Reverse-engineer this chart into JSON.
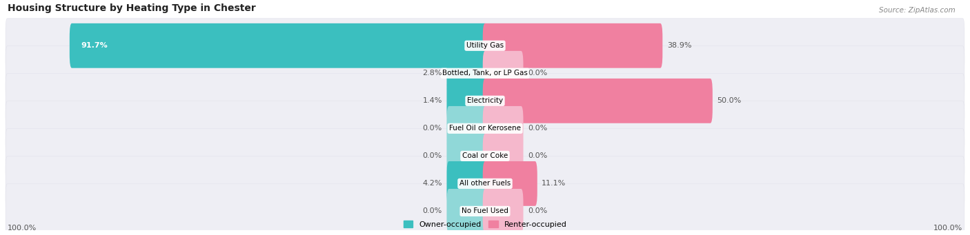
{
  "title": "Housing Structure by Heating Type in Chester",
  "source": "Source: ZipAtlas.com",
  "categories": [
    "Utility Gas",
    "Bottled, Tank, or LP Gas",
    "Electricity",
    "Fuel Oil or Kerosene",
    "Coal or Coke",
    "All other Fuels",
    "No Fuel Used"
  ],
  "owner_values": [
    91.7,
    2.8,
    1.4,
    0.0,
    0.0,
    4.2,
    0.0
  ],
  "renter_values": [
    38.9,
    0.0,
    50.0,
    0.0,
    0.0,
    11.1,
    0.0
  ],
  "owner_color": "#3bbfbf",
  "renter_color": "#f080a0",
  "owner_color_light": "#90d8d8",
  "renter_color_light": "#f5b8cc",
  "bar_bg_color": "#eeeef4",
  "bar_bg_edge": "#dedee8",
  "min_bar_width": 8.0,
  "max_scale": 100.0,
  "x_axis_label": "100.0%",
  "title_fontsize": 10,
  "source_fontsize": 7.5,
  "value_fontsize": 8,
  "category_fontsize": 7.5,
  "legend_fontsize": 8
}
